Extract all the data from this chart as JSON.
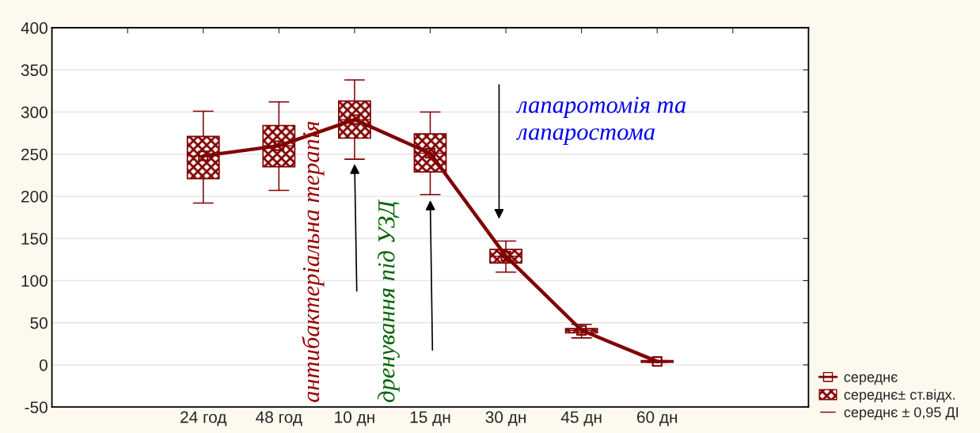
{
  "chart_data": {
    "type": "box",
    "categories": [
      null,
      "24 год",
      "48 год",
      "10 дн",
      "15 дн",
      "30 дн",
      "45 дн",
      "60 дн",
      null
    ],
    "series": [
      {
        "name": "середнє± ст.відх.",
        "color": "#800000",
        "boxes": [
          null,
          {
            "low": 192,
            "q1": 221,
            "median": 248,
            "q3": 271,
            "high": 301
          },
          {
            "low": 207,
            "q1": 235,
            "median": 260,
            "q3": 284,
            "high": 312
          },
          {
            "low": 244,
            "q1": 269,
            "median": 291,
            "q3": 313,
            "high": 338
          },
          {
            "low": 202,
            "q1": 229,
            "median": 251,
            "q3": 274,
            "high": 300
          },
          {
            "low": 110,
            "q1": 121,
            "median": 129,
            "q3": 137,
            "high": 147
          },
          {
            "low": 32,
            "q1": 38,
            "median": 41,
            "q3": 43,
            "high": 48
          },
          {
            "low": 3,
            "q1": 3,
            "median": 4,
            "q3": 5,
            "high": 5
          },
          null
        ]
      },
      {
        "type": "line",
        "name": "середнє",
        "color": "#800000",
        "marker": "square",
        "values": [
          null,
          248,
          260,
          291,
          251,
          129,
          41,
          4,
          null
        ]
      }
    ],
    "ylim": [
      -50,
      400
    ],
    "yticks": [
      -50,
      0,
      50,
      100,
      150,
      200,
      250,
      300,
      350,
      400
    ],
    "grid": "y",
    "legend": "bottom right",
    "annotations": [
      {
        "text": "антибактеріальна терапія",
        "x": "10 дн",
        "y": 241
      },
      {
        "text": "дренування під УЗД",
        "x": "15 дн",
        "y": 198
      },
      "лапаротомія та\nлапаростома",
      "середнє ± 0,95 ДІ"
    ]
  }
}
